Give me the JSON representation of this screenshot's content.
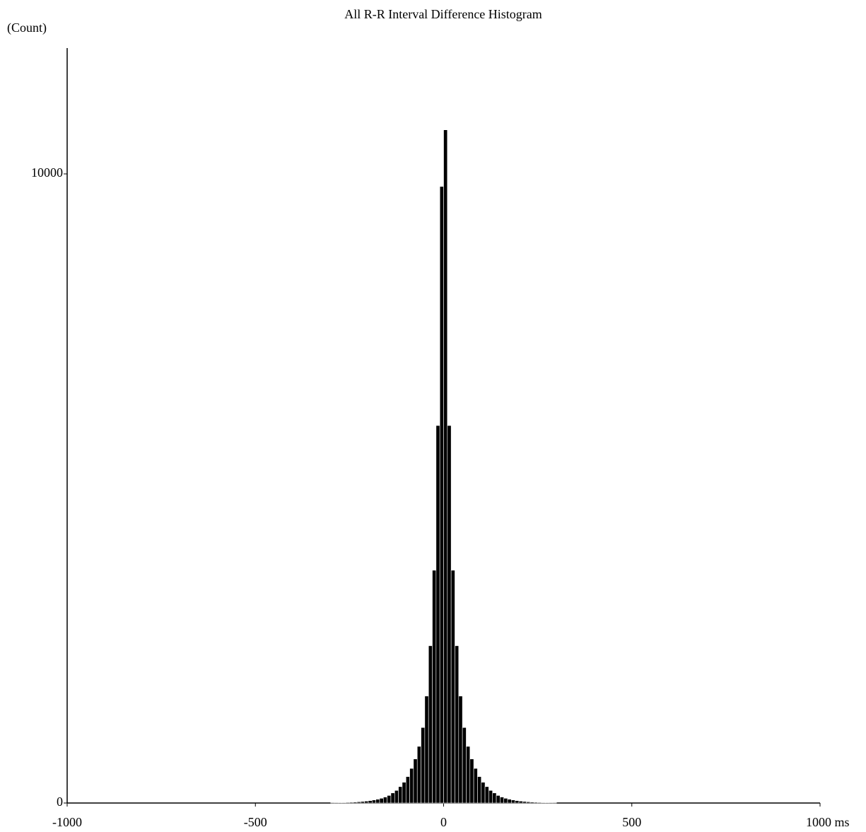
{
  "chart_data": {
    "type": "histogram",
    "title": "All R-R Interval Difference Histogram",
    "y_label": "(Count)",
    "bins": [
      -300,
      -290,
      -280,
      -270,
      -260,
      -250,
      -240,
      -230,
      -220,
      -210,
      -200,
      -190,
      -180,
      -170,
      -160,
      -150,
      -140,
      -130,
      -120,
      -110,
      -100,
      -90,
      -80,
      -70,
      -60,
      -50,
      -40,
      -30,
      -20,
      -10,
      0,
      10,
      20,
      30,
      40,
      50,
      60,
      70,
      80,
      90,
      100,
      110,
      120,
      130,
      140,
      150,
      160,
      170,
      180,
      190,
      200,
      210,
      220,
      230,
      240,
      250,
      260,
      270,
      280,
      290,
      300
    ],
    "counts": [
      4,
      5,
      6,
      8,
      10,
      12,
      15,
      19,
      24,
      30,
      38,
      48,
      60,
      75,
      95,
      120,
      160,
      200,
      260,
      330,
      420,
      550,
      700,
      900,
      1200,
      1700,
      2500,
      3700,
      6000,
      9800,
      10700,
      6000,
      3700,
      2500,
      1700,
      1200,
      900,
      700,
      550,
      420,
      330,
      260,
      200,
      160,
      120,
      95,
      75,
      60,
      48,
      38,
      30,
      24,
      19,
      15,
      12,
      10,
      8,
      6,
      5,
      4
    ],
    "color": "#000000",
    "xlim": [
      -1000,
      1000
    ],
    "xticks": [
      -1000,
      -500,
      0,
      500,
      {
        "value": 1000,
        "label": "1000 ms"
      }
    ],
    "ylim": [
      0,
      12000
    ],
    "yticks": [
      0,
      10000
    ]
  }
}
